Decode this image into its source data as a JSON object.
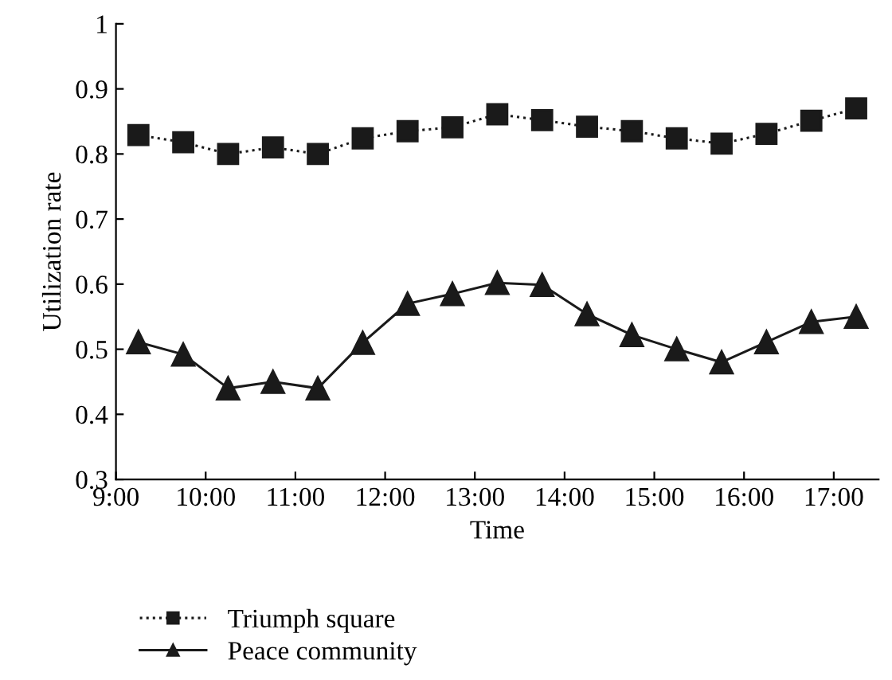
{
  "chart_data": {
    "type": "line",
    "xlabel": "Time",
    "ylabel": "Utilization rate",
    "x": [
      9.25,
      9.75,
      10.25,
      10.75,
      11.25,
      11.75,
      12.25,
      12.75,
      13.25,
      13.75,
      14.25,
      14.75,
      15.25,
      15.75,
      16.25,
      16.75,
      17.25
    ],
    "series": [
      {
        "name": "Triumph square",
        "color": "#1a1a1a",
        "marker": "square",
        "line_style": "dotted",
        "values": [
          0.829,
          0.818,
          0.8,
          0.81,
          0.8,
          0.824,
          0.835,
          0.841,
          0.861,
          0.852,
          0.842,
          0.835,
          0.824,
          0.816,
          0.831,
          0.851,
          0.87
        ]
      },
      {
        "name": "Peace community",
        "color": "#1a1a1a",
        "marker": "triangle",
        "line_style": "solid",
        "values": [
          0.511,
          0.492,
          0.44,
          0.45,
          0.44,
          0.51,
          0.57,
          0.585,
          0.602,
          0.599,
          0.554,
          0.522,
          0.5,
          0.48,
          0.511,
          0.542,
          0.55
        ]
      }
    ],
    "xlim": [
      9,
      17.5
    ],
    "xticks": [
      {
        "value": 9,
        "label": "9:00"
      },
      {
        "value": 10,
        "label": "10:00"
      },
      {
        "value": 11,
        "label": "11:00"
      },
      {
        "value": 12,
        "label": "12:00"
      },
      {
        "value": 13,
        "label": "13:00"
      },
      {
        "value": 14,
        "label": "14:00"
      },
      {
        "value": 15,
        "label": "15:00"
      },
      {
        "value": 16,
        "label": "16:00"
      },
      {
        "value": 17,
        "label": "17:00"
      }
    ],
    "ylim": [
      0.3,
      1
    ],
    "yticks": [
      0.3,
      0.4,
      0.5,
      0.6,
      0.7,
      0.8,
      0.9,
      1
    ],
    "grid": false,
    "legend": "bottom"
  }
}
